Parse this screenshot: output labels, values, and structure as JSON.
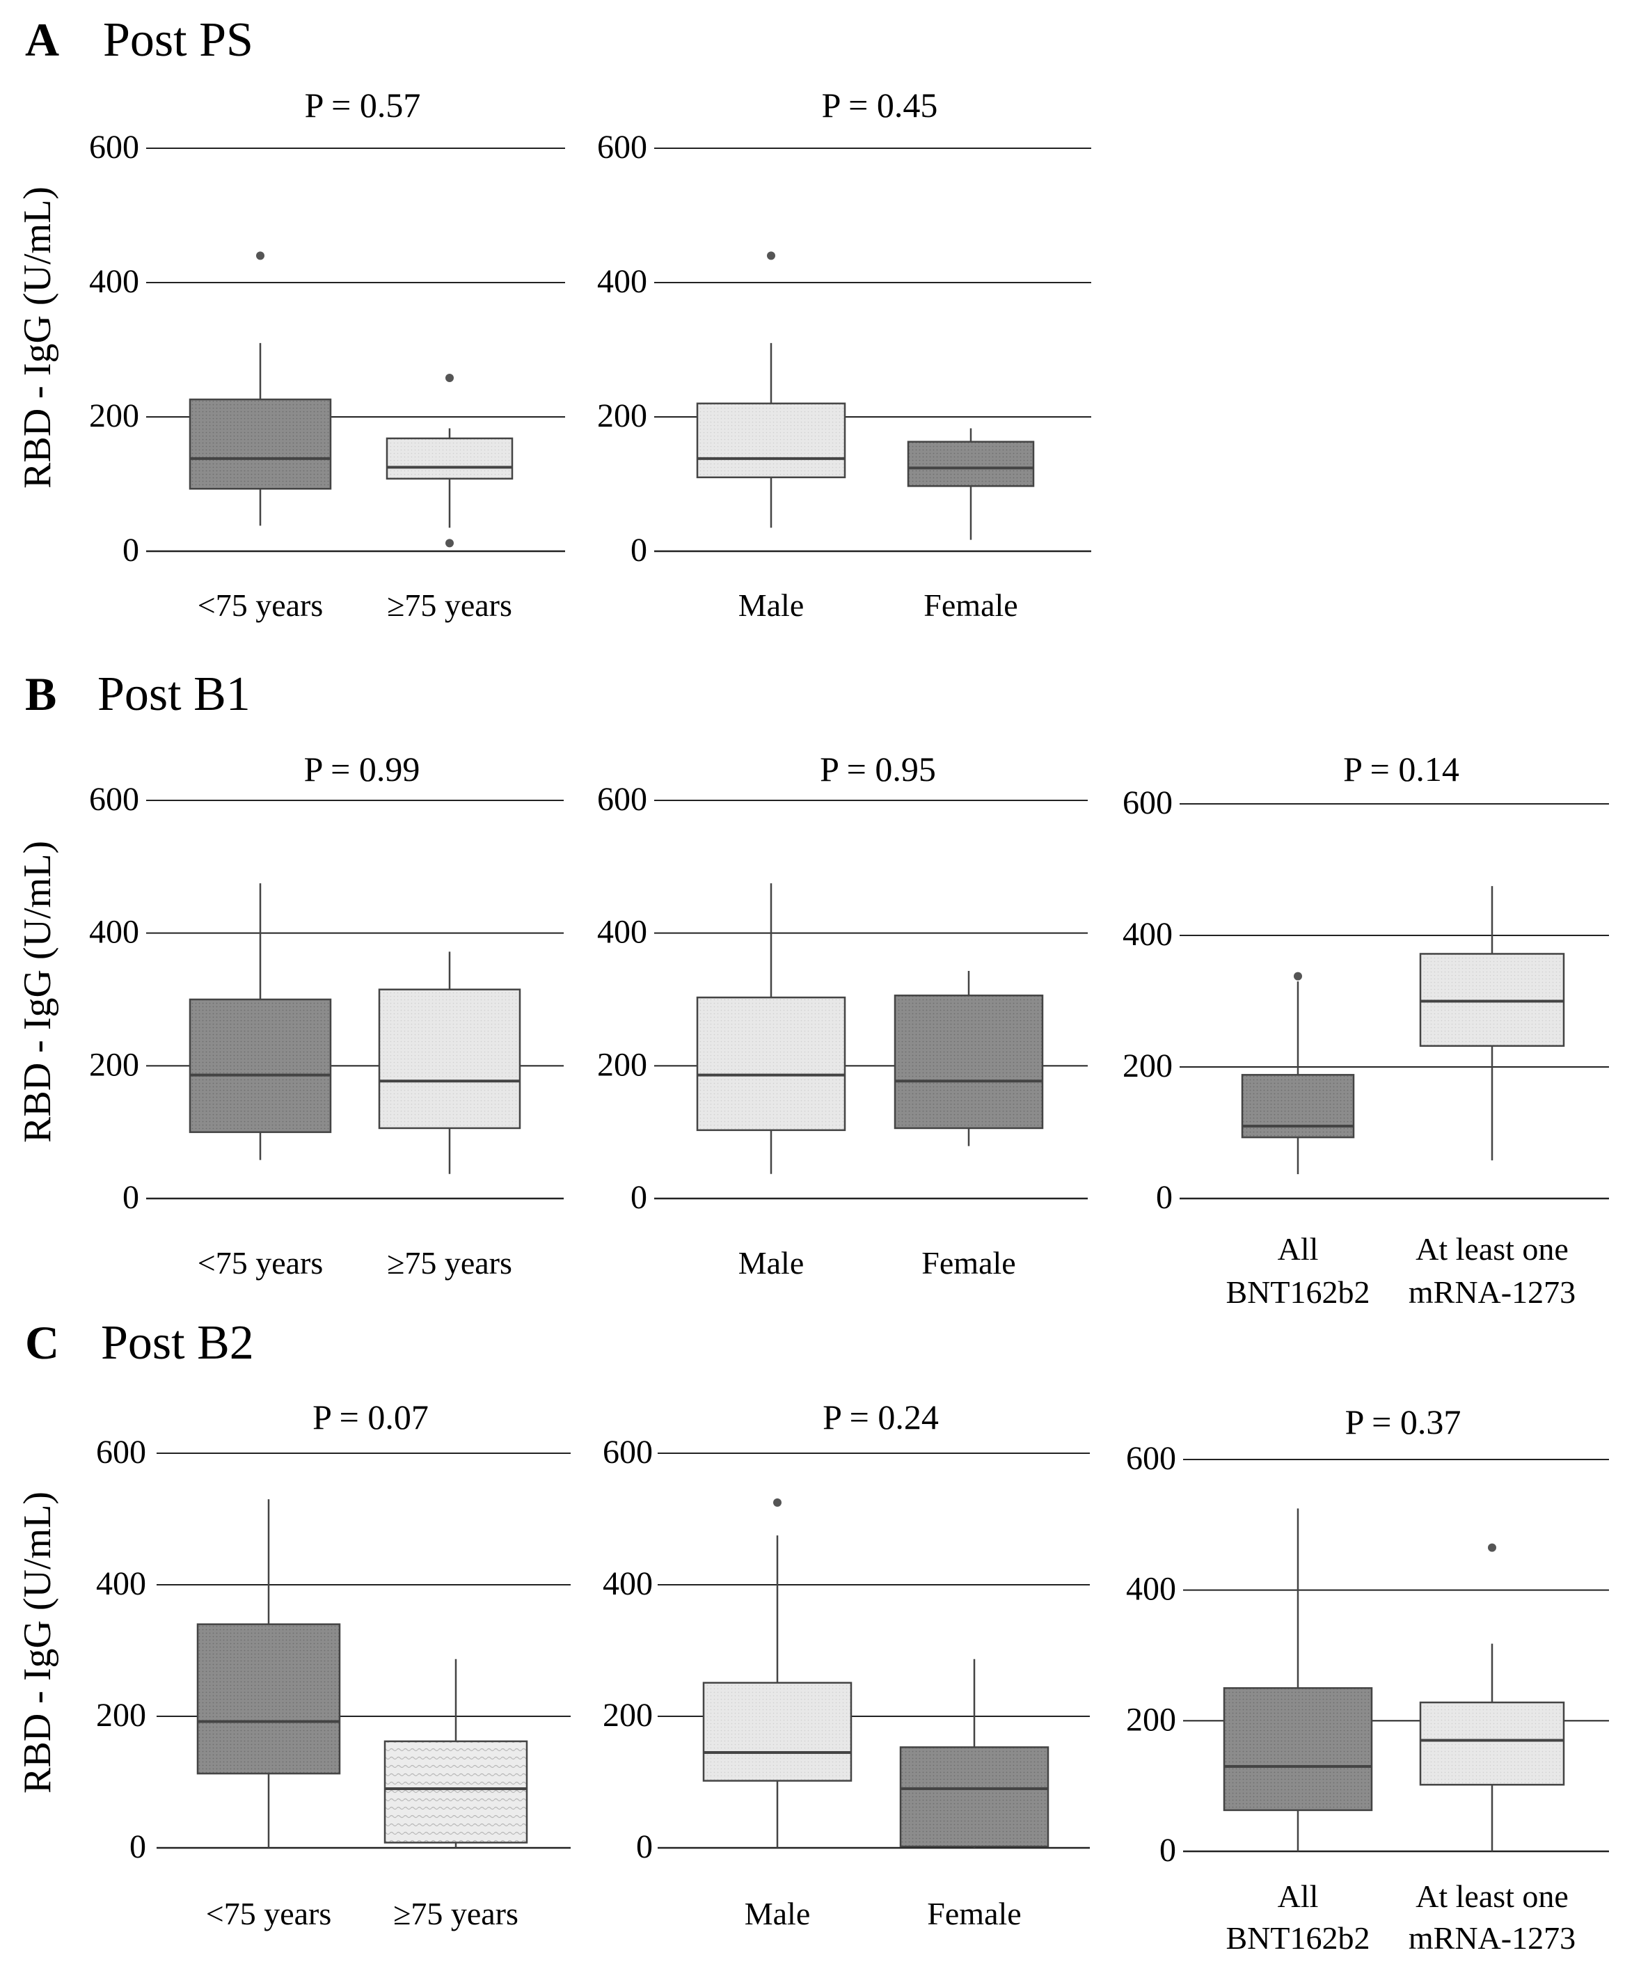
{
  "figure": {
    "y_axis_label": "RBD - IgG (U/mL)"
  },
  "colors": {
    "dark_fill": "#8c8c8c",
    "light_fill": "#e6e6e6",
    "stroke": "#444444",
    "gridline": "#222222"
  },
  "sections": [
    {
      "letter": "A",
      "title": "Post PS"
    },
    {
      "letter": "B",
      "title": "Post B1"
    },
    {
      "letter": "C",
      "title": "Post B2"
    }
  ],
  "chart_data": [
    {
      "type": "box",
      "section": "A",
      "title": "P = 0.57",
      "ylabel": "RBD - IgG (U/mL)",
      "ylim": [
        0,
        600
      ],
      "yticks": [
        0,
        200,
        400,
        600
      ],
      "categories": [
        {
          "label": [
            "<75 years"
          ],
          "fill": "dark",
          "q1": 93,
          "median": 138,
          "q3": 226,
          "whisker_low": 38,
          "whisker_high": 310,
          "outliers": [
            440
          ]
        },
        {
          "label": [
            "≥75 years"
          ],
          "fill": "light",
          "q1": 108,
          "median": 125,
          "q3": 168,
          "whisker_low": 35,
          "whisker_high": 183,
          "outliers": [
            258,
            12
          ]
        }
      ]
    },
    {
      "type": "box",
      "section": "A",
      "title": "P = 0.45",
      "ylabel": "RBD - IgG (U/mL)",
      "ylim": [
        0,
        600
      ],
      "yticks": [
        0,
        200,
        400,
        600
      ],
      "categories": [
        {
          "label": [
            "Male"
          ],
          "fill": "light",
          "q1": 110,
          "median": 138,
          "q3": 220,
          "whisker_low": 35,
          "whisker_high": 310,
          "outliers": [
            440
          ]
        },
        {
          "label": [
            "Female"
          ],
          "fill": "dark",
          "q1": 97,
          "median": 124,
          "q3": 163,
          "whisker_low": 17,
          "whisker_high": 183,
          "outliers": []
        }
      ]
    },
    {
      "type": "box",
      "section": "B",
      "title": "P = 0.99",
      "ylabel": "RBD - IgG (U/mL)",
      "ylim": [
        0,
        600
      ],
      "yticks": [
        0,
        200,
        400,
        600
      ],
      "categories": [
        {
          "label": [
            "<75 years"
          ],
          "fill": "dark",
          "q1": 100,
          "median": 186,
          "q3": 300,
          "whisker_low": 58,
          "whisker_high": 475,
          "outliers": []
        },
        {
          "label": [
            "≥75 years"
          ],
          "fill": "light",
          "q1": 106,
          "median": 177,
          "q3": 315,
          "whisker_low": 37,
          "whisker_high": 372,
          "outliers": []
        }
      ]
    },
    {
      "type": "box",
      "section": "B",
      "title": "P = 0.95",
      "ylabel": "RBD - IgG (U/mL)",
      "ylim": [
        0,
        600
      ],
      "yticks": [
        0,
        200,
        400,
        600
      ],
      "categories": [
        {
          "label": [
            "Male"
          ],
          "fill": "light",
          "q1": 103,
          "median": 186,
          "q3": 303,
          "whisker_low": 37,
          "whisker_high": 475,
          "outliers": []
        },
        {
          "label": [
            "Female"
          ],
          "fill": "dark",
          "q1": 106,
          "median": 177,
          "q3": 306,
          "whisker_low": 79,
          "whisker_high": 343,
          "outliers": []
        }
      ]
    },
    {
      "type": "box",
      "section": "B",
      "title": "P = 0.14",
      "ylabel": "RBD - IgG (U/mL)",
      "ylim": [
        0,
        600
      ],
      "yticks": [
        0,
        200,
        400,
        600
      ],
      "categories": [
        {
          "label": [
            "All",
            "BNT162b2"
          ],
          "fill": "dark",
          "q1": 93,
          "median": 110,
          "q3": 188,
          "whisker_low": 37,
          "whisker_high": 330,
          "outliers": [
            338
          ]
        },
        {
          "label": [
            "At least one",
            "mRNA-1273"
          ],
          "fill": "light",
          "q1": 232,
          "median": 300,
          "q3": 372,
          "whisker_low": 58,
          "whisker_high": 475,
          "outliers": []
        }
      ]
    },
    {
      "type": "box",
      "section": "C",
      "title": "P = 0.07",
      "ylabel": "RBD - IgG (U/mL)",
      "ylim": [
        0,
        600
      ],
      "yticks": [
        0,
        200,
        400,
        600
      ],
      "categories": [
        {
          "label": [
            "<75 years"
          ],
          "fill": "dark",
          "q1": 113,
          "median": 192,
          "q3": 340,
          "whisker_low": 0,
          "whisker_high": 530,
          "outliers": []
        },
        {
          "label": [
            "≥75 years"
          ],
          "fill": "light",
          "q1": 8,
          "median": 90,
          "q3": 162,
          "whisker_low": 0,
          "whisker_high": 287,
          "outliers": []
        }
      ]
    },
    {
      "type": "box",
      "section": "C",
      "title": "P = 0.24",
      "ylabel": "RBD - IgG (U/mL)",
      "ylim": [
        0,
        600
      ],
      "yticks": [
        0,
        200,
        400,
        600
      ],
      "categories": [
        {
          "label": [
            "Male"
          ],
          "fill": "light",
          "q1": 102,
          "median": 145,
          "q3": 251,
          "whisker_low": 0,
          "whisker_high": 475,
          "outliers": [
            525
          ]
        },
        {
          "label": [
            "Female"
          ],
          "fill": "dark",
          "q1": 2,
          "median": 90,
          "q3": 153,
          "whisker_low": 0,
          "whisker_high": 287,
          "outliers": []
        }
      ]
    },
    {
      "type": "box",
      "section": "C",
      "title": "P = 0.37",
      "ylabel": "RBD - IgG (U/mL)",
      "ylim": [
        0,
        600
      ],
      "yticks": [
        0,
        200,
        400,
        600
      ],
      "categories": [
        {
          "label": [
            "All",
            "BNT162b2"
          ],
          "fill": "dark",
          "q1": 63,
          "median": 130,
          "q3": 250,
          "whisker_low": 0,
          "whisker_high": 525,
          "outliers": []
        },
        {
          "label": [
            "At least one",
            "mRNA-1273"
          ],
          "fill": "light",
          "q1": 102,
          "median": 170,
          "q3": 228,
          "whisker_low": 0,
          "whisker_high": 318,
          "outliers": [
            465
          ]
        }
      ]
    }
  ]
}
